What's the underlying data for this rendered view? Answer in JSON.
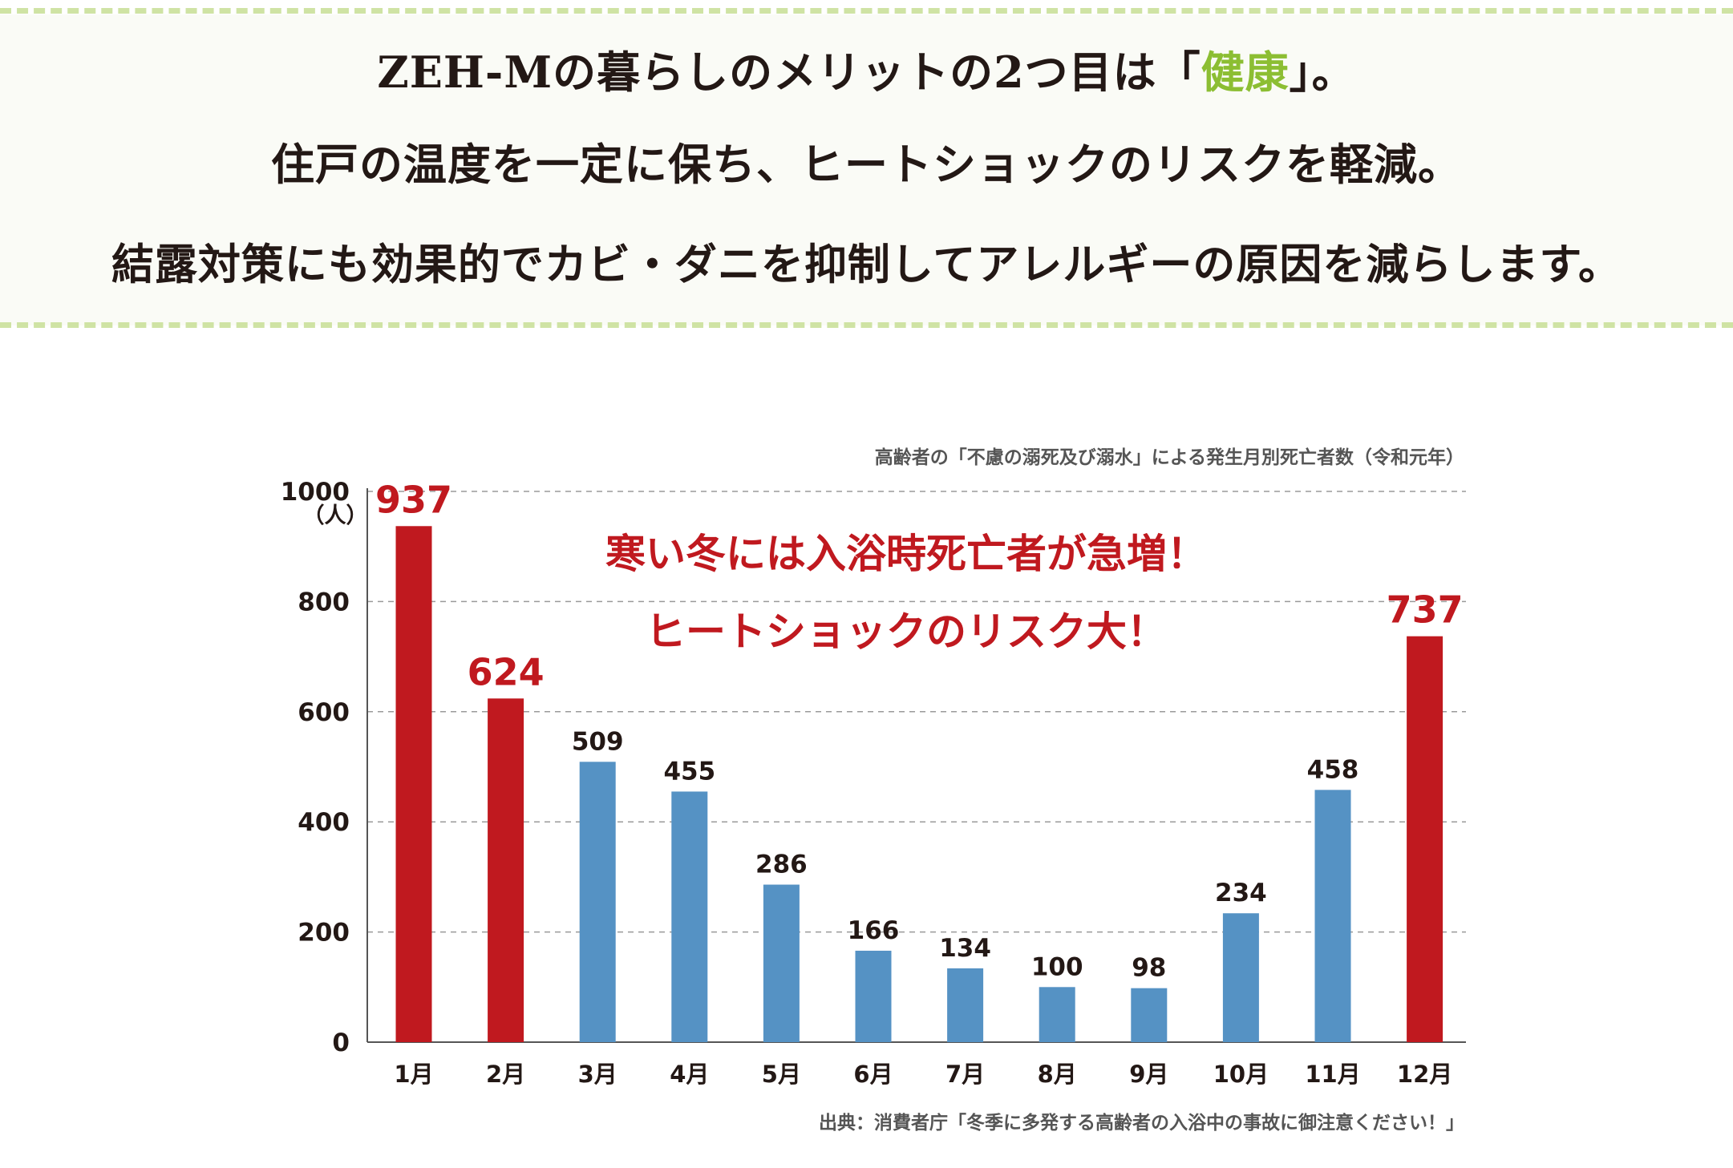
{
  "headline": {
    "line1_before": "ZEH-Mの暮らしのメリットの2つ目は「",
    "line1_accent": "健康",
    "line1_after": "」。",
    "line2": "住戸の温度を一定に保ち、ヒートショックのリスクを軽減。",
    "line3": "結露対策にも効果的でカビ・ダニを抑制してアレルギーの原因を減らします。"
  },
  "chart_data": {
    "type": "bar",
    "title": "高齢者の「不慮の溺死及び溺水」による発生月別死亡者数（令和元年）",
    "ylabel": "（人）",
    "ylim": [
      0,
      1000
    ],
    "yticks": [
      "0",
      "200",
      "400",
      "600",
      "800",
      "1000"
    ],
    "categories": [
      "1月",
      "2月",
      "3月",
      "4月",
      "5月",
      "6月",
      "7月",
      "8月",
      "9月",
      "10月",
      "11月",
      "12月"
    ],
    "values": [
      937,
      624,
      509,
      455,
      286,
      166,
      134,
      100,
      98,
      234,
      458,
      737
    ],
    "highlight": [
      true,
      true,
      false,
      false,
      false,
      false,
      false,
      false,
      false,
      false,
      false,
      true
    ],
    "colors": {
      "highlight": "#c0191f",
      "normal": "#5592c4"
    },
    "grid": true,
    "annotation": [
      "寒い冬には入浴時死亡者が急増！",
      "ヒートショックのリスク大！"
    ],
    "source": "出典：消費者庁「冬季に多発する高齢者の入浴中の事故に御注意ください！」"
  }
}
